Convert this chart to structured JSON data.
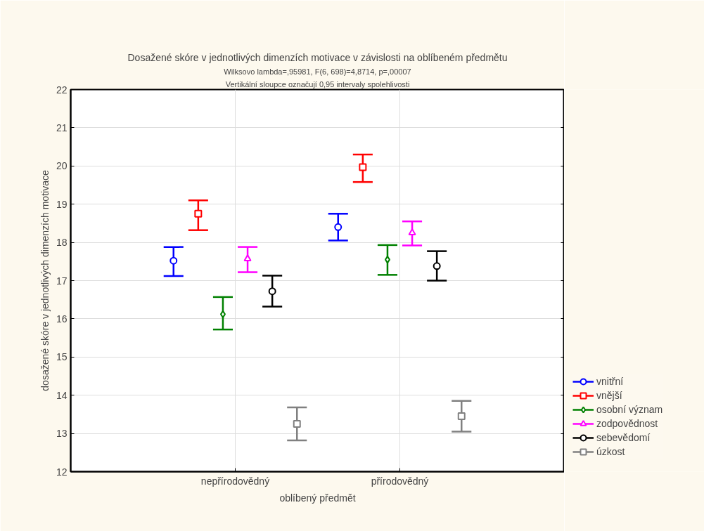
{
  "chart_data": {
    "type": "scatter",
    "title": "Dosažené skóre v jednotlivých dimenzích motivace v závislosti na oblíbeném předmětu",
    "subtitle": "Wilksovo lambda=,95981, F(6, 698)=4,8714, p=,00007",
    "annotations": [
      "Vertikální sloupce označují 0,95 intervaly spolehlivosti"
    ],
    "xlabel": "oblíbený předmět",
    "ylabel": "dosažené skóre v jednotlivých dimenzích motivace",
    "categories": [
      "nepřírodovědný",
      "přírodovědný"
    ],
    "ylim": [
      12,
      22
    ],
    "yticks": [
      12,
      13,
      14,
      15,
      16,
      17,
      18,
      19,
      20,
      21,
      22
    ],
    "grid": true,
    "legend": "right",
    "series": [
      {
        "name": "vnitřní",
        "color": "#0000ff",
        "marker": "circle",
        "values": [
          17.52,
          18.4
        ],
        "errors": [
          [
            17.12,
            17.88
          ],
          [
            18.05,
            18.75
          ]
        ]
      },
      {
        "name": "vnější",
        "color": "#ff0000",
        "marker": "square",
        "values": [
          18.75,
          19.97
        ],
        "errors": [
          [
            18.32,
            19.1
          ],
          [
            19.58,
            20.3
          ]
        ]
      },
      {
        "name": "osobní význam",
        "color": "#008000",
        "marker": "diamond",
        "values": [
          16.12,
          17.55
        ],
        "errors": [
          [
            15.72,
            16.57
          ],
          [
            17.15,
            17.93
          ]
        ]
      },
      {
        "name": "zodpovědnost",
        "color": "#ff00ff",
        "marker": "triangle",
        "values": [
          17.57,
          18.25
        ],
        "errors": [
          [
            17.22,
            17.88
          ],
          [
            17.92,
            18.55
          ]
        ]
      },
      {
        "name": "sebevědomí",
        "color": "#000000",
        "marker": "circle",
        "values": [
          16.72,
          17.38
        ],
        "errors": [
          [
            16.32,
            17.13
          ],
          [
            17.0,
            17.77
          ]
        ]
      },
      {
        "name": "úzkost",
        "color": "#808080",
        "marker": "square",
        "values": [
          13.25,
          13.45
        ],
        "errors": [
          [
            12.82,
            13.68
          ],
          [
            13.05,
            13.85
          ]
        ]
      }
    ]
  }
}
